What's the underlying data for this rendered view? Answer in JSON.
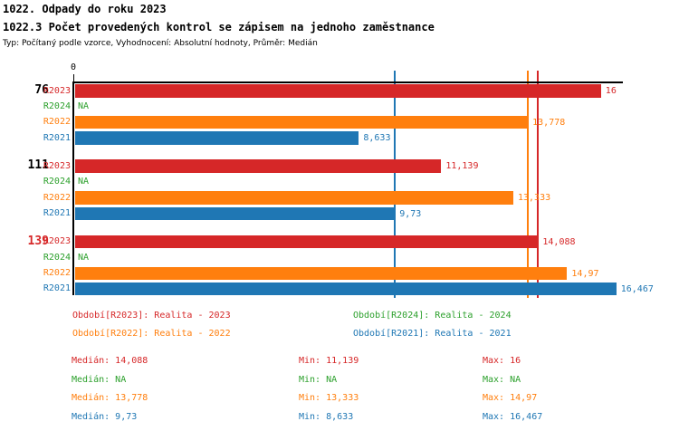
{
  "header": {
    "title": "1022. Odpady do roku 2023",
    "subtitle": "1022.3 Počet provedených kontrol se zápisem na jednoho zaměstnance",
    "meta": "Typ: Počítaný podle vzorce, Vyhodnocení: Absolutní hodnoty, Průměr: Medián"
  },
  "colors": {
    "red": "#d62728",
    "green": "#2ca02c",
    "orange": "#ff7f0e",
    "blue": "#1f77b4",
    "axis": "#000000"
  },
  "chart_data": {
    "type": "bar",
    "orientation": "horizontal",
    "title": "1022.3 Počet provedených kontrol se zápisem na jednoho zaměstnance",
    "x_axis": {
      "origin_label": "0",
      "min": 0,
      "max": 16.65,
      "grid": false
    },
    "row_order": [
      "R2023",
      "R2024",
      "R2022",
      "R2021"
    ],
    "series_meta": {
      "R2023": {
        "color": "#d62728",
        "legend": "Období[R2023]: Realita - 2023"
      },
      "R2024": {
        "color": "#2ca02c",
        "legend": "Období[R2024]: Realita - 2024"
      },
      "R2022": {
        "color": "#ff7f0e",
        "legend": "Období[R2022]: Realita - 2022"
      },
      "R2021": {
        "color": "#1f77b4",
        "legend": "Období[R2021]: Realita - 2021"
      }
    },
    "na_color": "#2ca02c",
    "groups": [
      {
        "label": "76",
        "label_color": "#000000",
        "values": {
          "R2023": 16,
          "R2024": null,
          "R2022": 13.778,
          "R2021": 8.633
        },
        "displays": {
          "R2023": "16",
          "R2024": "NA",
          "R2022": "13,778",
          "R2021": "8,633"
        }
      },
      {
        "label": "111",
        "label_color": "#000000",
        "values": {
          "R2023": 11.139,
          "R2024": null,
          "R2022": 13.333,
          "R2021": 9.73
        },
        "displays": {
          "R2023": "11,139",
          "R2024": "NA",
          "R2022": "13,333",
          "R2021": "9,73"
        }
      },
      {
        "label": "139",
        "label_color": "#d62728",
        "values": {
          "R2023": 14.088,
          "R2024": null,
          "R2022": 14.97,
          "R2021": 16.467
        },
        "displays": {
          "R2023": "14,088",
          "R2024": "NA",
          "R2022": "14,97",
          "R2021": "16,467"
        }
      }
    ],
    "median_lines": [
      {
        "series": "R2023",
        "value": 14.088,
        "color": "#d62728"
      },
      {
        "series": "R2022",
        "value": 13.778,
        "color": "#ff7f0e"
      },
      {
        "series": "R2021",
        "value": 9.73,
        "color": "#1f77b4"
      }
    ]
  },
  "legend": {
    "items": [
      {
        "label": "Období[R2023]: Realita - 2023",
        "color": "#d62728"
      },
      {
        "label": "Období[R2024]: Realita - 2024",
        "color": "#2ca02c"
      },
      {
        "label": "Období[R2022]: Realita - 2022",
        "color": "#ff7f0e"
      },
      {
        "label": "Období[R2021]: Realita - 2021",
        "color": "#1f77b4"
      }
    ]
  },
  "stats": {
    "labels": {
      "median": "Medián: ",
      "min": "Min: ",
      "max": "Max: "
    },
    "rows": [
      {
        "series": "R2023",
        "color": "#d62728",
        "median": "14,088",
        "min": "11,139",
        "max": "16"
      },
      {
        "series": "R2024",
        "color": "#2ca02c",
        "median": "NA",
        "min": "NA",
        "max": "NA"
      },
      {
        "series": "R2022",
        "color": "#ff7f0e",
        "median": "13,778",
        "min": "13,333",
        "max": "14,97"
      },
      {
        "series": "R2021",
        "color": "#1f77b4",
        "median": "9,73",
        "min": "8,633",
        "max": "16,467"
      }
    ]
  }
}
